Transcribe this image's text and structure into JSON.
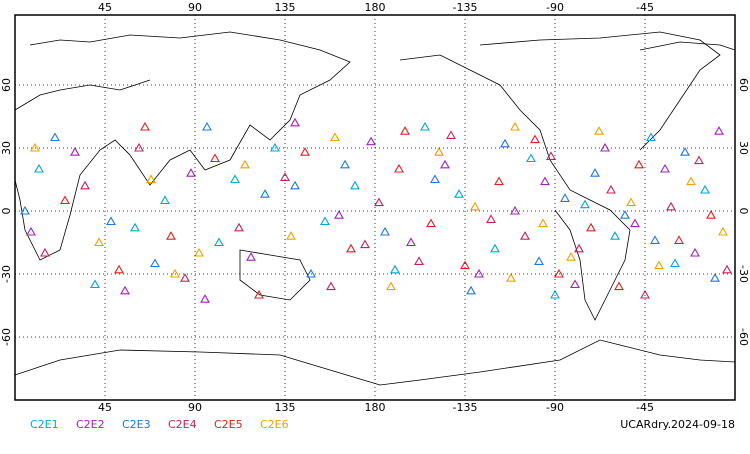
{
  "chart_data": {
    "type": "map",
    "xlim": [
      0,
      360
    ],
    "ylim": [
      -90,
      90
    ],
    "xticks": [
      45,
      90,
      135,
      180,
      {
        "value": 225,
        "label": "-135"
      },
      {
        "value": 270,
        "label": "-90"
      },
      {
        "value": 315,
        "label": "-45"
      }
    ],
    "yticks": [
      60,
      30,
      0,
      -30,
      -60
    ],
    "grid": true,
    "footer": "UCARdry.2024-09-18",
    "series": [
      {
        "name": "C2E1",
        "color": "#00a8d0",
        "lon": [
          12,
          40,
          75,
          102,
          130,
          155,
          170,
          190,
          205,
          222,
          240,
          258,
          270,
          285,
          300,
          318,
          330,
          345,
          60,
          110
        ],
        "lat": [
          20,
          -35,
          5,
          -15,
          30,
          -5,
          12,
          -28,
          40,
          8,
          -18,
          25,
          -40,
          3,
          -12,
          35,
          -25,
          10,
          -8,
          15
        ]
      },
      {
        "name": "C2E2",
        "color": "#a020c0",
        "lon": [
          8,
          30,
          55,
          88,
          118,
          140,
          162,
          178,
          198,
          215,
          232,
          250,
          265,
          280,
          295,
          310,
          325,
          340,
          352,
          95
        ],
        "lat": [
          -10,
          28,
          -38,
          18,
          -22,
          42,
          -2,
          33,
          -15,
          22,
          -30,
          0,
          14,
          -35,
          30,
          -6,
          20,
          -20,
          38,
          -42
        ]
      },
      {
        "name": "C2E3",
        "color": "#1e78e0",
        "lon": [
          20,
          48,
          70,
          96,
          125,
          148,
          165,
          185,
          210,
          228,
          245,
          262,
          275,
          290,
          305,
          320,
          335,
          350,
          5,
          140
        ],
        "lat": [
          35,
          -5,
          -25,
          40,
          8,
          -30,
          22,
          -10,
          15,
          -38,
          32,
          -24,
          6,
          18,
          -2,
          -14,
          28,
          -32,
          0,
          12
        ]
      },
      {
        "name": "C2E4",
        "color": "#c8205a",
        "lon": [
          15,
          35,
          62,
          85,
          112,
          135,
          158,
          182,
          202,
          218,
          238,
          255,
          268,
          282,
          298,
          315,
          328,
          342,
          356,
          175
        ],
        "lat": [
          -20,
          12,
          30,
          -32,
          -8,
          16,
          -36,
          4,
          -24,
          36,
          -4,
          -12,
          26,
          -18,
          10,
          -40,
          2,
          24,
          -28,
          -16
        ]
      },
      {
        "name": "C2E5",
        "color": "#e02020",
        "lon": [
          25,
          52,
          78,
          100,
          122,
          145,
          168,
          192,
          208,
          225,
          242,
          260,
          272,
          288,
          302,
          312,
          332,
          348,
          65,
          195
        ],
        "lat": [
          5,
          -28,
          -12,
          25,
          -40,
          28,
          -18,
          20,
          -6,
          -26,
          14,
          34,
          -30,
          -8,
          -36,
          22,
          -14,
          -2,
          40,
          38
        ]
      },
      {
        "name": "C2E6",
        "color": "#f0a000",
        "lon": [
          10,
          42,
          68,
          92,
          115,
          138,
          160,
          188,
          212,
          230,
          248,
          264,
          278,
          292,
          308,
          322,
          338,
          354,
          80,
          250
        ],
        "lat": [
          30,
          -15,
          15,
          -20,
          22,
          -12,
          35,
          -36,
          28,
          2,
          -32,
          -6,
          -22,
          38,
          4,
          -26,
          14,
          -10,
          -30,
          40
        ]
      }
    ]
  }
}
